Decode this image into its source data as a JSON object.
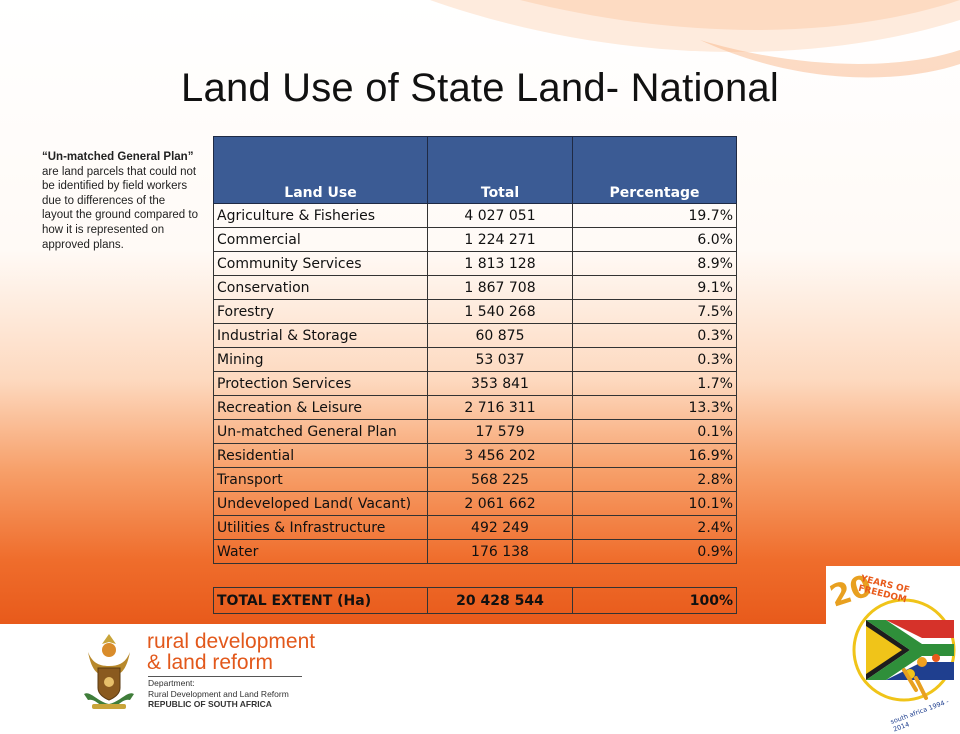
{
  "slide": {
    "title": "Land Use of State Land- National"
  },
  "note": {
    "bold": "“Un-matched General Plan”",
    "text": " are land parcels that could not be identified by field workers due to differences of the layout the ground compared to how it is represented on approved plans."
  },
  "table": {
    "headers": [
      "Land Use",
      "Total",
      "Percentage"
    ],
    "rows": [
      {
        "use": "Agriculture & Fisheries",
        "total": "4 027 051",
        "pct": "19.7%"
      },
      {
        "use": "Commercial",
        "total": "1 224 271",
        "pct": "6.0%"
      },
      {
        "use": "Community Services",
        "total": "1 813 128",
        "pct": "8.9%"
      },
      {
        "use": "Conservation",
        "total": "1 867 708",
        "pct": "9.1%"
      },
      {
        "use": "Forestry",
        "total": "1 540 268",
        "pct": "7.5%"
      },
      {
        "use": "Industrial & Storage",
        "total": "60 875",
        "pct": "0.3%"
      },
      {
        "use": "Mining",
        "total": "53 037",
        "pct": "0.3%"
      },
      {
        "use": "Protection Services",
        "total": "353 841",
        "pct": "1.7%"
      },
      {
        "use": "Recreation & Leisure",
        "total": "2 716 311",
        "pct": "13.3%"
      },
      {
        "use": "Un-matched General Plan",
        "total": "17 579",
        "pct": "0.1%"
      },
      {
        "use": "Residential",
        "total": "3 456 202",
        "pct": "16.9%"
      },
      {
        "use": "Transport",
        "total": "568 225",
        "pct": "2.8%"
      },
      {
        "use": "Undeveloped Land( Vacant)",
        "total": "2 061 662",
        "pct": "10.1%"
      },
      {
        "use": "Utilities  & Infrastructure",
        "total": "492 249",
        "pct": "2.4%"
      },
      {
        "use": "Water",
        "total": "176 138",
        "pct": "0.9%"
      }
    ],
    "total": {
      "use": "TOTAL EXTENT (Ha)",
      "total": "20 428 544",
      "pct": "100%"
    }
  },
  "footer": {
    "brand_line1": "rural development",
    "brand_line2": "& land reform",
    "dept_line1": "Department:",
    "dept_line2": "Rural Development and Land Reform",
    "dept_line3": "REPUBLIC OF SOUTH AFRICA"
  },
  "badge": {
    "number": "20",
    "text": "YEARS OF FREEDOM",
    "years": "south africa 1994 - 2014"
  },
  "colors": {
    "header_blue": "#3b5b94",
    "brand_orange": "#e2581b"
  }
}
